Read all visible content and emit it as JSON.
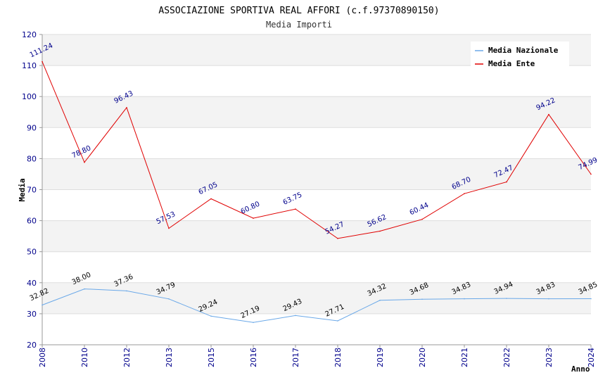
{
  "chart_data": {
    "type": "line",
    "title": "ASSOCIAZIONE SPORTIVA REAL AFFORI (c.f.97370890150)",
    "subtitle": "Media Importi",
    "xlabel": "Anno",
    "ylabel": "Media",
    "ylim": [
      20,
      120
    ],
    "yticks": [
      "20",
      "30",
      "40",
      "50",
      "60",
      "70",
      "80",
      "90",
      "100",
      "110",
      "120"
    ],
    "categories": [
      "2008",
      "2010",
      "2012",
      "2013",
      "2015",
      "2016",
      "2017",
      "2018",
      "2019",
      "2020",
      "2021",
      "2022",
      "2023",
      "2024"
    ],
    "grid": true,
    "legend_position": "top-right",
    "series": [
      {
        "name": "Media Nazionale",
        "color": "#6aa8e8",
        "values": [
          32.82,
          38.0,
          37.36,
          34.79,
          29.24,
          27.19,
          29.43,
          27.71,
          34.32,
          34.68,
          34.83,
          34.94,
          34.83,
          34.85
        ],
        "labels": [
          "32.82",
          "38.00",
          "37.36",
          "34.79",
          "29.24",
          "27.19",
          "29.43",
          "27.71",
          "34.32",
          "34.68",
          "34.83",
          "34.94",
          "34.83",
          "34.85"
        ]
      },
      {
        "name": "Media Ente",
        "color": "#e00000",
        "values": [
          111.24,
          78.8,
          96.43,
          57.53,
          67.05,
          60.8,
          63.75,
          54.27,
          56.62,
          60.44,
          68.7,
          72.47,
          94.22,
          74.99
        ],
        "labels": [
          "111.24",
          "78.80",
          "96.43",
          "57.53",
          "67.05",
          "60.80",
          "63.75",
          "54.27",
          "56.62",
          "60.44",
          "68.70",
          "72.47",
          "94.22",
          "74.99"
        ]
      }
    ]
  }
}
